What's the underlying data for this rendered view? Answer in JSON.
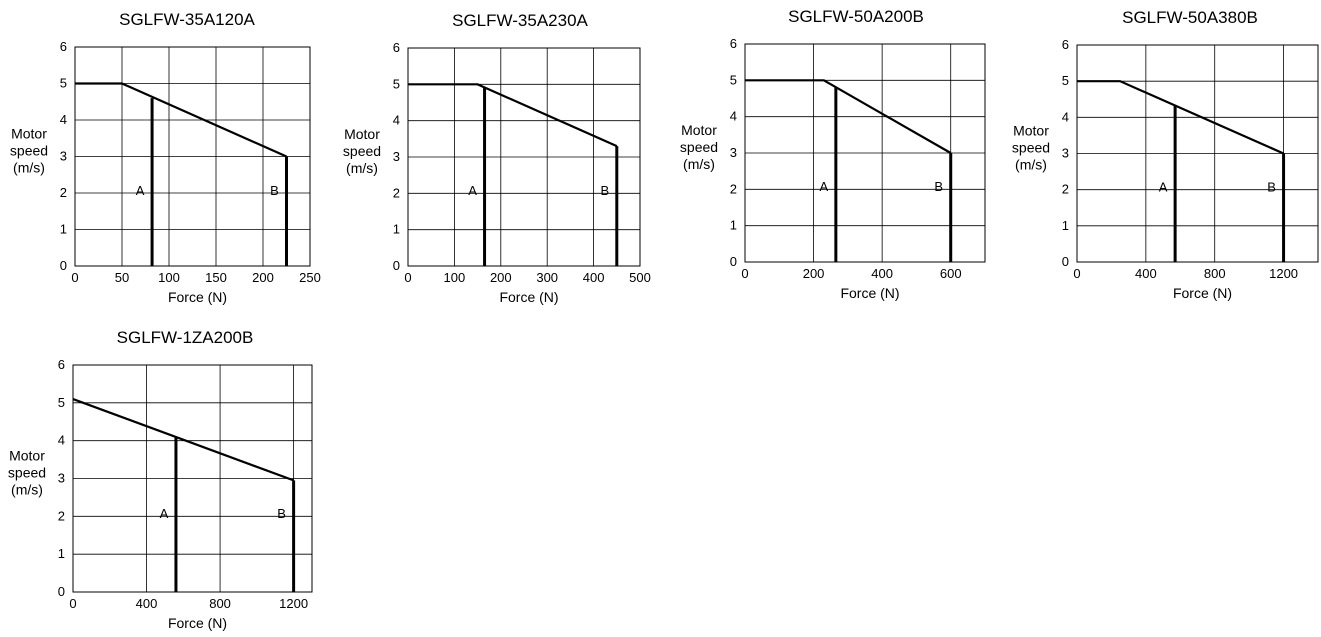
{
  "chart_data": [
    {
      "type": "line",
      "title": "SGLFW-35A120A",
      "xlabel": "Force (N)",
      "ylabel": [
        "Motor",
        "speed",
        "(m/s)"
      ],
      "xlim": [
        0,
        250
      ],
      "ylim": [
        0,
        6
      ],
      "xticks": [
        0,
        50,
        100,
        150,
        200,
        250
      ],
      "yticks": [
        0,
        1,
        2,
        3,
        4,
        5,
        6
      ],
      "grid": true,
      "series": [
        {
          "x": [
            0,
            50,
            225
          ],
          "y": [
            5,
            5,
            3
          ]
        }
      ],
      "regions": [
        {
          "label": "A",
          "force": 82,
          "speed": 4.6
        },
        {
          "label": "B",
          "force": 225,
          "speed": 3
        }
      ]
    },
    {
      "type": "line",
      "title": "SGLFW-35A230A",
      "xlabel": "Force (N)",
      "ylabel": [
        "Motor",
        "speed",
        "(m/s)"
      ],
      "xlim": [
        0,
        500
      ],
      "ylim": [
        0,
        6
      ],
      "xticks": [
        0,
        100,
        200,
        300,
        400,
        500
      ],
      "yticks": [
        0,
        1,
        2,
        3,
        4,
        5,
        6
      ],
      "grid": true,
      "series": [
        {
          "x": [
            0,
            150,
            450
          ],
          "y": [
            5,
            5,
            3.3
          ]
        }
      ],
      "regions": [
        {
          "label": "A",
          "force": 165,
          "speed": 4.92
        },
        {
          "label": "B",
          "force": 450,
          "speed": 3.3
        }
      ]
    },
    {
      "type": "line",
      "title": "SGLFW-50A200B",
      "xlabel": "Force (N)",
      "ylabel": [
        "Motor",
        "speed",
        "(m/s)"
      ],
      "xlim": [
        0,
        700
      ],
      "ylim": [
        0,
        6
      ],
      "xticks": [
        0,
        200,
        400,
        600
      ],
      "yticks": [
        0,
        1,
        2,
        3,
        4,
        5,
        6
      ],
      "grid": true,
      "series": [
        {
          "x": [
            0,
            230,
            600
          ],
          "y": [
            5,
            5,
            3
          ]
        }
      ],
      "regions": [
        {
          "label": "A",
          "force": 265,
          "speed": 4.81
        },
        {
          "label": "B",
          "force": 600,
          "speed": 3
        }
      ]
    },
    {
      "type": "line",
      "title": "SGLFW-50A380B",
      "xlabel": "Force (N)",
      "ylabel": [
        "Motor",
        "speed",
        "(m/s)"
      ],
      "xlim": [
        0,
        1400
      ],
      "ylim": [
        0,
        6
      ],
      "xticks": [
        0,
        400,
        800,
        1200
      ],
      "yticks": [
        0,
        1,
        2,
        3,
        4,
        5,
        6
      ],
      "grid": true,
      "series": [
        {
          "x": [
            0,
            250,
            1200
          ],
          "y": [
            5,
            5,
            3
          ]
        }
      ],
      "regions": [
        {
          "label": "A",
          "force": 570,
          "speed": 4.33
        },
        {
          "label": "B",
          "force": 1200,
          "speed": 3
        }
      ]
    },
    {
      "type": "line",
      "title": "SGLFW-1ZA200B",
      "xlabel": "Force (N)",
      "ylabel": [
        "Motor",
        "speed",
        "(m/s)"
      ],
      "xlim": [
        0,
        1300
      ],
      "ylim": [
        0,
        6
      ],
      "xticks": [
        0,
        400,
        800,
        1200
      ],
      "yticks": [
        0,
        1,
        2,
        3,
        4,
        5,
        6
      ],
      "grid": true,
      "series": [
        {
          "x": [
            0,
            1200
          ],
          "y": [
            5.1,
            2.95
          ]
        }
      ],
      "regions": [
        {
          "label": "A",
          "force": 560,
          "speed": 4.1
        },
        {
          "label": "B",
          "force": 1200,
          "speed": 2.95
        }
      ]
    }
  ]
}
